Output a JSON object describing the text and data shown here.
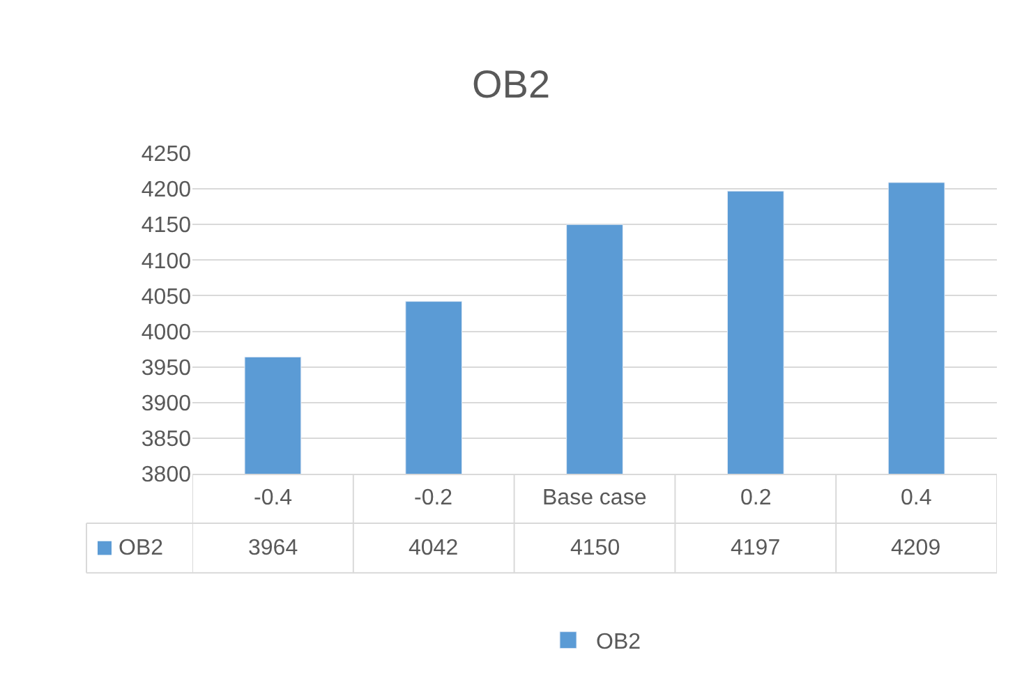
{
  "chart_data": {
    "type": "bar",
    "title": "OB2",
    "categories": [
      "-0.4",
      "-0.2",
      "Base case",
      "0.2",
      "0.4"
    ],
    "series": [
      {
        "name": "OB2",
        "color": "#5b9bd5",
        "values": [
          3964,
          4042,
          4150,
          4197,
          4209
        ]
      }
    ],
    "ylim": [
      3800,
      4250
    ],
    "yticks": [
      3800,
      3850,
      3900,
      3950,
      4000,
      4050,
      4100,
      4150,
      4200,
      4250
    ],
    "grid": "y",
    "legend": "bottom",
    "data_labels": true
  }
}
